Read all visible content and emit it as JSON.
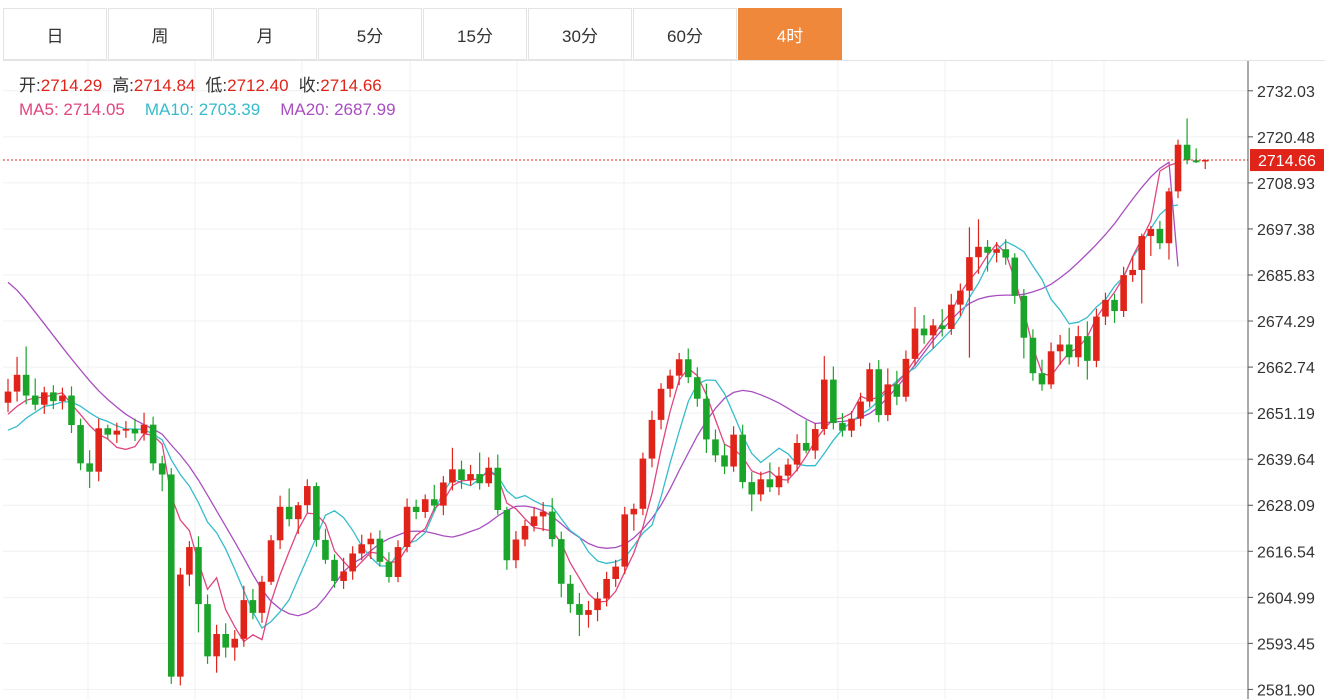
{
  "tabs": [
    {
      "label": "日",
      "active": false
    },
    {
      "label": "周",
      "active": false
    },
    {
      "label": "月",
      "active": false
    },
    {
      "label": "5分",
      "active": false
    },
    {
      "label": "15分",
      "active": false
    },
    {
      "label": "30分",
      "active": false
    },
    {
      "label": "60分",
      "active": false
    },
    {
      "label": "4时",
      "active": true
    }
  ],
  "ohlc_legend": {
    "open_label": "开:",
    "open": "2714.29",
    "high_label": "高:",
    "high": "2714.84",
    "low_label": "低:",
    "low": "2712.40",
    "close_label": "收:",
    "close": "2714.66"
  },
  "ma_legend": {
    "ma5_label": "MA5:",
    "ma5": "2714.05",
    "ma10_label": "MA10:",
    "ma10": "2703.39",
    "ma20_label": "MA20:",
    "ma20": "2687.99"
  },
  "colors": {
    "up": "#e0241a",
    "down": "#1aa52a",
    "ma5": "#e0457f",
    "ma10": "#36bccb",
    "ma20": "#a94ec0",
    "last_price": "#e0241a"
  },
  "chart_data": {
    "type": "candlestick",
    "y_ticks": [
      "2732.03",
      "2720.48",
      "2708.93",
      "2697.38",
      "2685.83",
      "2674.29",
      "2662.74",
      "2651.19",
      "2639.64",
      "2628.09",
      "2616.54",
      "2604.99",
      "2593.45",
      "2581.90"
    ],
    "ylim": [
      2579.5,
      2739.5
    ],
    "last_price": "2714.66",
    "grid": true,
    "candles": [
      [
        2653.8,
        2659.8,
        2651.5,
        2656.6
      ],
      [
        2656.6,
        2665.3,
        2654.1,
        2660.8
      ],
      [
        2660.8,
        2667.9,
        2653.4,
        2655.6
      ],
      [
        2655.6,
        2659.9,
        2651.9,
        2653.3
      ],
      [
        2653.3,
        2657.8,
        2651.0,
        2656.4
      ],
      [
        2656.4,
        2658.2,
        2652.2,
        2654.2
      ],
      [
        2654.2,
        2657.6,
        2652.1,
        2655.6
      ],
      [
        2655.6,
        2657.9,
        2646.2,
        2648.2
      ],
      [
        2648.2,
        2649.8,
        2636.9,
        2638.6
      ],
      [
        2638.6,
        2641.9,
        2632.4,
        2636.5
      ],
      [
        2636.5,
        2649.8,
        2634.1,
        2647.4
      ],
      [
        2647.4,
        2648.3,
        2644.6,
        2645.8
      ],
      [
        2645.8,
        2648.8,
        2643.7,
        2646.8
      ],
      [
        2646.8,
        2649.2,
        2645.0,
        2647.2
      ],
      [
        2647.2,
        2649.8,
        2644.2,
        2646.1
      ],
      [
        2646.1,
        2651.3,
        2644.3,
        2648.3
      ],
      [
        2648.3,
        2650.3,
        2636.8,
        2638.6
      ],
      [
        2638.6,
        2640.5,
        2631.6,
        2635.8
      ],
      [
        2635.8,
        2637.4,
        2583.3,
        2585.1
      ],
      [
        2585.1,
        2612.4,
        2582.9,
        2610.7
      ],
      [
        2610.7,
        2619.1,
        2607.8,
        2617.6
      ],
      [
        2617.6,
        2620.3,
        2596.2,
        2603.3
      ],
      [
        2603.3,
        2605.7,
        2588.3,
        2590.2
      ],
      [
        2590.2,
        2598.1,
        2586.1,
        2595.8
      ],
      [
        2595.8,
        2598.5,
        2589.9,
        2592.4
      ],
      [
        2592.4,
        2596.8,
        2589.1,
        2594.6
      ],
      [
        2594.6,
        2607.9,
        2592.6,
        2604.3
      ],
      [
        2604.3,
        2607.1,
        2599.5,
        2601.1
      ],
      [
        2601.1,
        2610.4,
        2598.6,
        2608.9
      ],
      [
        2608.9,
        2620.6,
        2608.1,
        2619.3
      ],
      [
        2619.3,
        2630.5,
        2617.1,
        2627.7
      ],
      [
        2627.7,
        2632.3,
        2622.8,
        2624.6
      ],
      [
        2624.6,
        2628.9,
        2620.9,
        2628.1
      ],
      [
        2628.1,
        2634.6,
        2626.2,
        2632.9
      ],
      [
        2632.9,
        2633.8,
        2617.7,
        2619.4
      ],
      [
        2619.4,
        2622.2,
        2613.4,
        2614.4
      ],
      [
        2614.4,
        2615.8,
        2607.4,
        2609.1
      ],
      [
        2609.1,
        2614.9,
        2607.1,
        2611.5
      ],
      [
        2611.5,
        2617.8,
        2609.4,
        2616.0
      ],
      [
        2616.0,
        2620.7,
        2614.3,
        2618.3
      ],
      [
        2618.3,
        2621.2,
        2614.6,
        2619.7
      ],
      [
        2619.7,
        2621.8,
        2612.7,
        2613.9
      ],
      [
        2613.9,
        2616.3,
        2608.7,
        2610.1
      ],
      [
        2610.1,
        2619.3,
        2608.8,
        2617.6
      ],
      [
        2617.6,
        2629.8,
        2616.3,
        2627.7
      ],
      [
        2627.7,
        2629.5,
        2624.6,
        2626.4
      ],
      [
        2626.4,
        2630.8,
        2624.9,
        2629.6
      ],
      [
        2629.6,
        2633.2,
        2626.7,
        2628.0
      ],
      [
        2628.0,
        2635.4,
        2625.6,
        2633.8
      ],
      [
        2633.8,
        2642.5,
        2631.8,
        2637.1
      ],
      [
        2637.1,
        2639.3,
        2632.2,
        2634.4
      ],
      [
        2634.4,
        2638.2,
        2633.0,
        2635.9
      ],
      [
        2635.9,
        2641.3,
        2632.0,
        2633.6
      ],
      [
        2633.6,
        2640.1,
        2632.7,
        2637.5
      ],
      [
        2637.5,
        2640.8,
        2625.7,
        2626.9
      ],
      [
        2626.9,
        2627.7,
        2611.9,
        2614.3
      ],
      [
        2614.3,
        2621.6,
        2612.3,
        2619.5
      ],
      [
        2619.5,
        2624.4,
        2617.8,
        2622.9
      ],
      [
        2622.9,
        2627.6,
        2621.5,
        2625.3
      ],
      [
        2625.3,
        2628.9,
        2621.6,
        2626.5
      ],
      [
        2626.5,
        2629.9,
        2617.7,
        2619.6
      ],
      [
        2619.6,
        2621.5,
        2605.0,
        2608.4
      ],
      [
        2608.4,
        2610.6,
        2601.1,
        2603.3
      ],
      [
        2603.3,
        2606.1,
        2595.3,
        2600.6
      ],
      [
        2600.6,
        2604.1,
        2597.4,
        2601.8
      ],
      [
        2601.8,
        2606.3,
        2599.0,
        2604.7
      ],
      [
        2604.7,
        2611.4,
        2602.7,
        2609.6
      ],
      [
        2609.6,
        2614.4,
        2607.6,
        2612.7
      ],
      [
        2612.7,
        2627.7,
        2610.8,
        2625.8
      ],
      [
        2625.8,
        2628.5,
        2621.7,
        2627.2
      ],
      [
        2627.2,
        2641.3,
        2625.6,
        2639.8
      ],
      [
        2639.8,
        2651.8,
        2637.6,
        2649.5
      ],
      [
        2649.5,
        2658.7,
        2647.1,
        2657.3
      ],
      [
        2657.3,
        2662.1,
        2655.2,
        2660.6
      ],
      [
        2660.6,
        2666.3,
        2658.2,
        2664.7
      ],
      [
        2664.7,
        2667.4,
        2658.7,
        2660.2
      ],
      [
        2660.2,
        2662.7,
        2652.8,
        2654.8
      ],
      [
        2654.8,
        2658.6,
        2641.2,
        2644.6
      ],
      [
        2644.6,
        2647.1,
        2638.9,
        2640.6
      ],
      [
        2640.6,
        2643.4,
        2635.9,
        2637.8
      ],
      [
        2637.8,
        2647.9,
        2636.5,
        2645.8
      ],
      [
        2645.8,
        2648.3,
        2632.3,
        2633.9
      ],
      [
        2633.9,
        2636.4,
        2626.6,
        2630.8
      ],
      [
        2630.8,
        2636.5,
        2629.1,
        2634.6
      ],
      [
        2634.6,
        2638.8,
        2631.4,
        2632.6
      ],
      [
        2632.6,
        2637.7,
        2630.6,
        2635.5
      ],
      [
        2635.5,
        2639.8,
        2633.6,
        2638.3
      ],
      [
        2638.3,
        2645.9,
        2636.6,
        2643.7
      ],
      [
        2643.7,
        2649.4,
        2641.1,
        2641.8
      ],
      [
        2641.8,
        2648.7,
        2639.7,
        2647.2
      ],
      [
        2647.2,
        2665.5,
        2645.7,
        2659.6
      ],
      [
        2659.6,
        2662.9,
        2647.1,
        2648.7
      ],
      [
        2648.7,
        2651.2,
        2645.3,
        2646.8
      ],
      [
        2646.8,
        2651.7,
        2645.2,
        2649.8
      ],
      [
        2649.8,
        2656.3,
        2647.9,
        2654.1
      ],
      [
        2654.1,
        2663.8,
        2652.6,
        2662.2
      ],
      [
        2662.2,
        2664.5,
        2648.9,
        2650.7
      ],
      [
        2650.7,
        2662.4,
        2649.2,
        2658.4
      ],
      [
        2658.4,
        2661.8,
        2653.2,
        2655.3
      ],
      [
        2655.3,
        2666.9,
        2654.1,
        2664.8
      ],
      [
        2664.8,
        2677.8,
        2663.1,
        2672.4
      ],
      [
        2672.4,
        2675.8,
        2668.6,
        2670.7
      ],
      [
        2670.7,
        2674.8,
        2667.4,
        2673.2
      ],
      [
        2673.2,
        2677.3,
        2670.4,
        2672.3
      ],
      [
        2672.3,
        2681.1,
        2670.8,
        2678.4
      ],
      [
        2678.4,
        2683.7,
        2675.6,
        2681.9
      ],
      [
        2681.9,
        2697.8,
        2665.1,
        2690.3
      ],
      [
        2690.3,
        2699.8,
        2686.1,
        2692.9
      ],
      [
        2692.9,
        2694.6,
        2686.7,
        2691.4
      ],
      [
        2691.4,
        2694.1,
        2689.0,
        2692.3
      ],
      [
        2692.3,
        2694.8,
        2688.4,
        2690.2
      ],
      [
        2690.2,
        2691.3,
        2678.6,
        2680.6
      ],
      [
        2680.6,
        2682.3,
        2664.9,
        2670.1
      ],
      [
        2670.1,
        2672.2,
        2659.3,
        2661.2
      ],
      [
        2661.2,
        2664.6,
        2656.8,
        2658.4
      ],
      [
        2658.4,
        2668.9,
        2657.3,
        2666.7
      ],
      [
        2666.7,
        2670.8,
        2663.3,
        2668.4
      ],
      [
        2668.4,
        2672.6,
        2663.4,
        2665.2
      ],
      [
        2665.2,
        2673.1,
        2662.8,
        2670.5
      ],
      [
        2670.5,
        2674.2,
        2659.6,
        2664.3
      ],
      [
        2664.3,
        2677.4,
        2662.7,
        2675.4
      ],
      [
        2675.4,
        2681.4,
        2673.3,
        2679.6
      ],
      [
        2679.6,
        2681.1,
        2673.8,
        2676.8
      ],
      [
        2676.8,
        2687.9,
        2675.3,
        2685.8
      ],
      [
        2685.8,
        2690.4,
        2684.1,
        2687.1
      ],
      [
        2687.1,
        2696.2,
        2678.7,
        2695.6
      ],
      [
        2695.6,
        2698.1,
        2690.6,
        2697.4
      ],
      [
        2697.4,
        2699.4,
        2692.3,
        2693.8
      ],
      [
        2693.8,
        2707.7,
        2689.7,
        2706.8
      ],
      [
        2706.8,
        2719.8,
        2705.1,
        2718.5
      ],
      [
        2718.5,
        2725.1,
        2713.6,
        2714.6
      ],
      [
        2714.6,
        2717.6,
        2713.9,
        2714.1
      ],
      [
        2714.29,
        2714.84,
        2712.4,
        2714.66
      ]
    ],
    "ma5": [
      2650.9,
      2652.9,
      2654.4,
      2655.0,
      2655.2,
      2655.8,
      2656.3,
      2653.4,
      2650.8,
      2648.1,
      2645.9,
      2644.7,
      2642.6,
      2642.1,
      2642.8,
      2646.0,
      2645.6,
      2643.4,
      2630.3,
      2624.4,
      2621.7,
      2613.7,
      2607.0,
      2609.9,
      2601.9,
      2597.6,
      2593.9,
      2595.6,
      2594.4,
      2603.8,
      2610.7,
      2616.5,
      2622.0,
      2626.1,
      2625.9,
      2623.4,
      2616.6,
      2614.0,
      2611.6,
      2613.9,
      2616.3,
      2616.0,
      2613.8,
      2613.9,
      2617.5,
      2620.6,
      2622.2,
      2627.3,
      2629.1,
      2633.0,
      2634.2,
      2634.4,
      2634.8,
      2636.6,
      2635.2,
      2628.6,
      2627.2,
      2624.7,
      2622.5,
      2622.1,
      2621.6,
      2618.6,
      2613.6,
      2609.8,
      2605.9,
      2603.8,
      2604.0,
      2606.5,
      2611.4,
      2616.1,
      2622.6,
      2631.0,
      2642.0,
      2651.6,
      2659.5,
      2662.4,
      2660.6,
      2655.8,
      2649.5,
      2643.4,
      2642.2,
      2640.2,
      2636.7,
      2635.8,
      2636.6,
      2634.6,
      2634.4,
      2637.0,
      2640.4,
      2644.2,
      2647.4,
      2649.6,
      2650.0,
      2651.2,
      2655.4,
      2654.5,
      2655.2,
      2657.5,
      2658.7,
      2661.3,
      2664.7,
      2667.5,
      2670.4,
      2673.9,
      2676.4,
      2681.3,
      2684.6,
      2687.2,
      2690.8,
      2693.6,
      2691.3,
      2684.7,
      2676.9,
      2667.8,
      2661.2,
      2660.5,
      2663.6,
      2666.4,
      2667.6,
      2670.3,
      2675.1,
      2678.5,
      2681.5,
      2685.3,
      2690.5,
      2694.9,
      2699.4,
      2711.9,
      2713.3,
      2714.05
    ],
    "ma10": [
      2646.9,
      2647.9,
      2649.9,
      2651.4,
      2652.9,
      2653.3,
      2654.0,
      2654.0,
      2652.9,
      2651.3,
      2649.9,
      2649.1,
      2648.0,
      2647.2,
      2647.2,
      2647.1,
      2645.9,
      2644.5,
      2639.5,
      2635.8,
      2632.9,
      2628.7,
      2623.9,
      2621.2,
      2617.1,
      2612.0,
      2606.7,
      2601.3,
      2597.3,
      2598.9,
      2601.4,
      2604.4,
      2609.6,
      2614.8,
      2620.1,
      2625.6,
      2626.7,
      2625.0,
      2621.8,
      2617.9,
      2615.0,
      2612.9,
      2612.8,
      2616.0,
      2618.5,
      2619.2,
      2621.2,
      2626.5,
      2631.4,
      2634.7,
      2633.7,
      2633.0,
      2634.7,
      2637.0,
      2635.4,
      2631.7,
      2629.8,
      2630.5,
      2629.2,
      2628.1,
      2627.8,
      2624.7,
      2621.7,
      2620.1,
      2616.4,
      2614.1,
      2613.5,
      2613.9,
      2614.9,
      2617.9,
      2621.1,
      2623.1,
      2630.1,
      2638.7,
      2646.6,
      2654.1,
      2658.5,
      2659.5,
      2659.4,
      2656.1,
      2650.9,
      2645.5,
      2641.1,
      2638.8,
      2640.6,
      2642.4,
      2641.0,
      2638.4,
      2638.0,
      2638.0,
      2641.1,
      2644.4,
      2647.1,
      2649.0,
      2650.8,
      2652.2,
      2654.3,
      2657.1,
      2659.3,
      2661.2,
      2662.5,
      2665.3,
      2667.4,
      2669.7,
      2672.1,
      2675.4,
      2680.2,
      2683.8,
      2688.4,
      2692.1,
      2694.2,
      2693.1,
      2691.7,
      2688.1,
      2684.7,
      2679.8,
      2677.0,
      2673.6,
      2674.0,
      2675.2,
      2677.8,
      2679.7,
      2683.0,
      2685.4,
      2690.3,
      2693.6,
      2697.5,
      2701.0,
      2703.0,
      2703.39
    ],
    "ma20": [
      2684.0,
      2682.0,
      2679.4,
      2676.5,
      2673.6,
      2670.6,
      2667.7,
      2664.8,
      2662.0,
      2659.3,
      2656.8,
      2654.6,
      2652.7,
      2650.9,
      2649.5,
      2648.3,
      2647.2,
      2645.9,
      2643.2,
      2640.7,
      2637.8,
      2634.4,
      2630.6,
      2626.7,
      2622.8,
      2618.9,
      2614.9,
      2610.7,
      2606.9,
      2604.0,
      2602.1,
      2600.9,
      2600.4,
      2601.1,
      2602.5,
      2605.1,
      2608.3,
      2611.4,
      2613.5,
      2614.8,
      2616.7,
      2618.5,
      2619.7,
      2620.6,
      2621.5,
      2621.6,
      2621.5,
      2621.0,
      2620.4,
      2620.1,
      2620.7,
      2621.5,
      2622.3,
      2623.7,
      2625.4,
      2626.8,
      2627.8,
      2627.9,
      2627.5,
      2626.7,
      2625.3,
      2623.4,
      2621.5,
      2620.0,
      2618.5,
      2617.6,
      2617.3,
      2617.5,
      2618.3,
      2619.9,
      2622.1,
      2624.8,
      2628.1,
      2632.2,
      2636.8,
      2641.2,
      2645.5,
      2649.2,
      2652.4,
      2654.9,
      2656.4,
      2656.9,
      2656.6,
      2655.8,
      2654.8,
      2653.7,
      2652.4,
      2651.0,
      2649.7,
      2648.6,
      2648.8,
      2649.0,
      2649.1,
      2649.4,
      2650.1,
      2651.1,
      2652.8,
      2655.1,
      2657.7,
      2660.4,
      2663.3,
      2666.4,
      2669.4,
      2672.1,
      2674.6,
      2676.9,
      2678.7,
      2679.8,
      2680.4,
      2680.7,
      2680.8,
      2680.8,
      2681.0,
      2681.6,
      2682.4,
      2683.5,
      2685.1,
      2686.9,
      2689.0,
      2691.2,
      2693.5,
      2696.0,
      2698.7,
      2701.8,
      2704.9,
      2707.8,
      2710.4,
      2712.6,
      2714.1,
      2687.99
    ]
  }
}
